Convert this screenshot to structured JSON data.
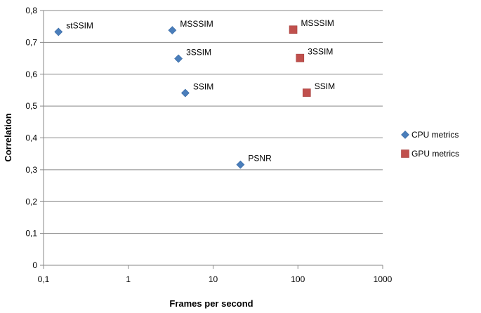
{
  "chart_data": {
    "type": "scatter",
    "title": "",
    "xlabel": "Frames per second",
    "ylabel": "Correlation",
    "xscale": "log",
    "xlim": [
      0.1,
      1000
    ],
    "ylim": [
      0,
      0.8
    ],
    "xticks": [
      {
        "value": 0.1,
        "label": "0,1"
      },
      {
        "value": 1,
        "label": "1"
      },
      {
        "value": 10,
        "label": "10"
      },
      {
        "value": 100,
        "label": "100"
      },
      {
        "value": 1000,
        "label": "1000"
      }
    ],
    "yticks": [
      {
        "value": 0,
        "label": "0"
      },
      {
        "value": 0.1,
        "label": "0,1"
      },
      {
        "value": 0.2,
        "label": "0,2"
      },
      {
        "value": 0.3,
        "label": "0,3"
      },
      {
        "value": 0.4,
        "label": "0,4"
      },
      {
        "value": 0.5,
        "label": "0,5"
      },
      {
        "value": 0.6,
        "label": "0,6"
      },
      {
        "value": 0.7,
        "label": "0,7"
      },
      {
        "value": 0.8,
        "label": "0,8"
      }
    ],
    "grid": "horizontal",
    "legend_position": "right",
    "series": [
      {
        "name": "CPU metrics",
        "marker": "diamond",
        "color": "#4a7ebb",
        "points": [
          {
            "label": "stSSIM",
            "x": 0.15,
            "y": 0.733
          },
          {
            "label": "MSSSIM",
            "x": 3.3,
            "y": 0.738
          },
          {
            "label": "3SSIM",
            "x": 3.9,
            "y": 0.649
          },
          {
            "label": "SSIM",
            "x": 4.7,
            "y": 0.541
          },
          {
            "label": "PSNR",
            "x": 21,
            "y": 0.316
          }
        ]
      },
      {
        "name": "GPU metrics",
        "marker": "square",
        "color": "#c0504d",
        "points": [
          {
            "label": "MSSSIM",
            "x": 88,
            "y": 0.74
          },
          {
            "label": "3SSIM",
            "x": 106,
            "y": 0.651
          },
          {
            "label": "SSIM",
            "x": 127,
            "y": 0.542
          }
        ]
      }
    ]
  }
}
